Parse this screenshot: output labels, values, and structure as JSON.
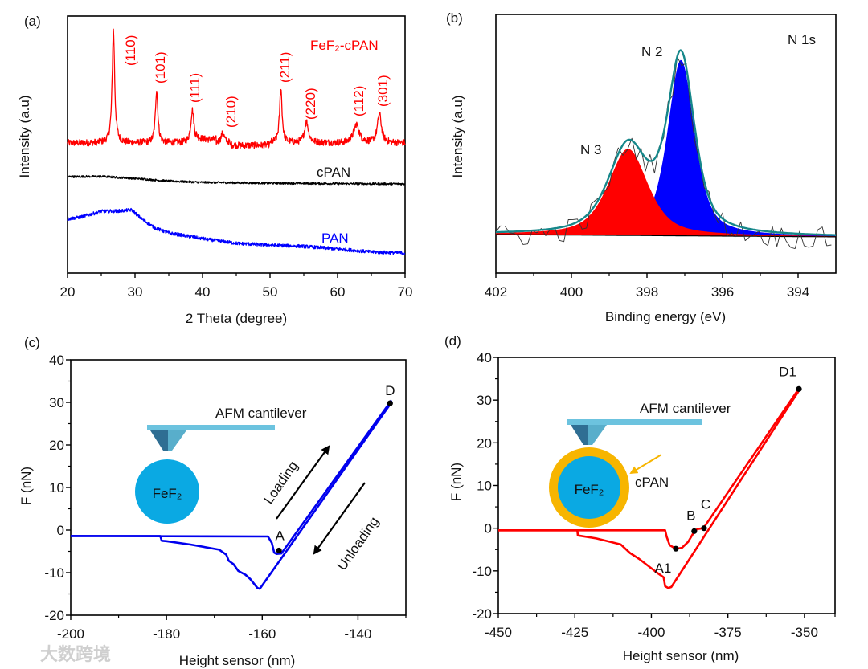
{
  "watermark": "大数跨境",
  "chart_data": [
    {
      "panel_label": "(a)",
      "type": "line",
      "xlabel": "2 Theta (degree)",
      "ylabel": "Intensity (a.u)",
      "xlim": [
        20,
        70
      ],
      "ylim": [
        0,
        100
      ],
      "xticks": [
        "20",
        "30",
        "40",
        "50",
        "60",
        "70"
      ],
      "series": [
        {
          "name": "FeF₂-cPAN",
          "color": "#ff0000",
          "baseline": 50.6,
          "peaks": [
            {
              "label": "(110)",
              "x": 26.8,
              "height": 94.4,
              "width": 0.22
            },
            {
              "label": "(101)",
              "x": 33.2,
              "height": 71.3,
              "width": 0.22
            },
            {
              "label": "(111)",
              "x": 38.5,
              "height": 63.4,
              "width": 0.28
            },
            {
              "label": "(210)",
              "x": 43.0,
              "height": 54.4,
              "width": 0.3
            },
            {
              "label": "(211)",
              "x": 51.6,
              "height": 71.9,
              "width": 0.22
            },
            {
              "label": "(220)",
              "x": 55.4,
              "height": 58.8,
              "width": 0.35
            },
            {
              "label": "(112)",
              "x": 62.8,
              "height": 57.8,
              "width": 0.5
            },
            {
              "label": "(301)",
              "x": 66.2,
              "height": 61.9,
              "width": 0.35
            }
          ]
        },
        {
          "name": "cPAN",
          "color": "#000000",
          "x": [
            20,
            25,
            30,
            35,
            40,
            50,
            60,
            70
          ],
          "y": [
            37.5,
            37.6,
            36.8,
            35.8,
            35.3,
            35.0,
            34.8,
            34.7
          ]
        },
        {
          "name": "PAN",
          "color": "#0000ff",
          "x": [
            20,
            22,
            25,
            28,
            29.5,
            31,
            33,
            35,
            40,
            45,
            50,
            55,
            60,
            65,
            70
          ],
          "y": [
            21,
            21.8,
            24,
            24.2,
            24.6,
            21,
            17.5,
            15.6,
            13.4,
            11.6,
            10.9,
            10.4,
            9.4,
            8.2,
            7.8
          ]
        }
      ]
    },
    {
      "panel_label": "(b)",
      "type": "area",
      "title": "N 1s",
      "xlabel": "Binding energy (eV)",
      "ylabel": "Intensity (a.u)",
      "xlim": [
        402,
        393
      ],
      "ylim": [
        0,
        100
      ],
      "xticks": [
        "402",
        "400",
        "398",
        "396",
        "394"
      ],
      "background": {
        "start": 14.9,
        "end": 14.0
      },
      "components": [
        {
          "name": "N 2",
          "center": 397.1,
          "amplitude": 68,
          "fwhm": 0.85,
          "color": "#0000ff"
        },
        {
          "name": "N 3",
          "center": 398.5,
          "amplitude": 33.5,
          "fwhm": 1.25,
          "color": "#ff0000"
        }
      ],
      "envelope_color": "#16878a",
      "raw_color": "#333333"
    },
    {
      "panel_label": "(c)",
      "type": "line",
      "xlabel": "Height sensor (nm)",
      "ylabel": "F (nN)",
      "xlim": [
        -200,
        -130
      ],
      "ylim": [
        -20,
        40
      ],
      "xticks": [
        "-200",
        "-180",
        "-160",
        "-140"
      ],
      "yticks": [
        "-20",
        "-10",
        "0",
        "10",
        "20",
        "30",
        "40"
      ],
      "color": "#0000ee",
      "approach": {
        "x": [
          -200,
          -158.8,
          -158,
          -157.5,
          -157,
          -156,
          -133
        ],
        "y": [
          -1.4,
          -1.5,
          -3,
          -5.3,
          -5.6,
          -5.5,
          30.5
        ]
      },
      "retract": {
        "x": [
          -133,
          -160.5,
          -161,
          -162.5,
          -163.5,
          -165,
          -166,
          -167,
          -167.5,
          -169,
          -175,
          -180,
          -181,
          -181.3,
          -200
        ],
        "y": [
          30,
          -13.8,
          -13.6,
          -11.5,
          -10.5,
          -9.6,
          -8,
          -7.2,
          -5.8,
          -4.6,
          -3.4,
          -2.6,
          -2.5,
          -1.4,
          -1.4
        ]
      },
      "points": [
        {
          "label": "A",
          "x": -156.5,
          "y": -4.8
        },
        {
          "label": "D",
          "x": -133.3,
          "y": 29.8
        }
      ],
      "annotations": {
        "cantilever": "AFM cantilever",
        "particle": "FeF₂",
        "loading": "Loading",
        "unloading": "Unloading"
      }
    },
    {
      "panel_label": "(d)",
      "type": "line",
      "xlabel": "Height sensor (nm)",
      "ylabel": "F (nN)",
      "xlim": [
        -450,
        -340
      ],
      "ylim": [
        -20,
        40
      ],
      "xticks": [
        "-450",
        "-425",
        "-400",
        "-375",
        "-350"
      ],
      "yticks": [
        "-20",
        "-10",
        "0",
        "10",
        "20",
        "30",
        "40"
      ],
      "color": "#ff0000",
      "approach": {
        "x": [
          -450,
          -395.5,
          -395,
          -394,
          -392,
          -390,
          -388,
          -386,
          -385,
          -383,
          -352
        ],
        "y": [
          -0.5,
          -0.5,
          -2,
          -4,
          -4.8,
          -4.6,
          -3.2,
          -0.8,
          -0.2,
          0,
          32.5
        ]
      },
      "retract": {
        "x": [
          -352,
          -393.5,
          -394.5,
          -395.5,
          -396,
          -398,
          -404,
          -407,
          -410,
          -418,
          -424,
          -424.2,
          -450
        ],
        "y": [
          32,
          -13.8,
          -14,
          -13.6,
          -11.5,
          -10.5,
          -7.2,
          -5.8,
          -3.8,
          -2.4,
          -1.7,
          -0.5,
          -0.5
        ]
      },
      "points": [
        {
          "label": "A1",
          "x": -392,
          "y": -4.8
        },
        {
          "label": "B",
          "x": -386,
          "y": -0.7
        },
        {
          "label": "C",
          "x": -382.8,
          "y": 0
        },
        {
          "label": "D1",
          "x": -351.8,
          "y": 32.6
        }
      ],
      "annotations": {
        "cantilever": "AFM cantilever",
        "particle": "FeF₂",
        "shell": "cPAN"
      }
    }
  ]
}
